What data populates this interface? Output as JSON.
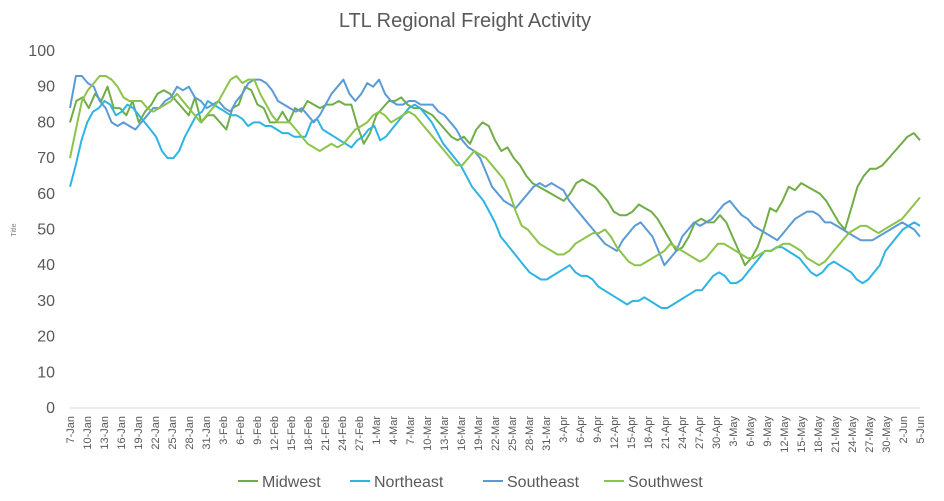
{
  "chart_data": {
    "type": "line",
    "title": "LTL Regional Freight Activity",
    "ylabel": "Title",
    "xlabel": "",
    "ylim": [
      0,
      100
    ],
    "y_ticks": [
      0,
      10,
      20,
      30,
      40,
      50,
      60,
      70,
      80,
      90,
      100
    ],
    "grid": false,
    "legend": "bottom",
    "x_tick_labels": [
      "7-Jan",
      "10-Jan",
      "13-Jan",
      "16-Jan",
      "19-Jan",
      "22-Jan",
      "25-Jan",
      "28-Jan",
      "31-Jan",
      "3-Feb",
      "6-Feb",
      "9-Feb",
      "12-Feb",
      "15-Feb",
      "18-Feb",
      "21-Feb",
      "24-Feb",
      "27-Feb",
      "1-Mar",
      "4-Mar",
      "7-Mar",
      "10-Mar",
      "13-Mar",
      "16-Mar",
      "19-Mar",
      "22-Mar",
      "25-Mar",
      "28-Mar",
      "31-Mar",
      "3-Apr",
      "6-Apr",
      "9-Apr",
      "12-Apr",
      "15-Apr",
      "18-Apr",
      "21-Apr",
      "24-Apr",
      "27-Apr",
      "30-Apr",
      "3-May",
      "6-May",
      "9-May",
      "12-May",
      "15-May",
      "18-May",
      "21-May",
      "24-May",
      "27-May",
      "30-May",
      "2-Jun",
      "5-Jun"
    ],
    "series": [
      {
        "name": "Midwest",
        "color": "#70AD47",
        "values": [
          80,
          86,
          87,
          84,
          88,
          86,
          90,
          84,
          84,
          82,
          86,
          80,
          83,
          85,
          88,
          89,
          88,
          86,
          84,
          82,
          87,
          80,
          82,
          82,
          80,
          78,
          84,
          85,
          90,
          89,
          85,
          84,
          80,
          80,
          83,
          80,
          84,
          83,
          86,
          85,
          84,
          85,
          85,
          86,
          85,
          85,
          79,
          74,
          77,
          82,
          84,
          86,
          86,
          87,
          85,
          84,
          84,
          83,
          82,
          80,
          78,
          76,
          75,
          76,
          74,
          78,
          80,
          79,
          75,
          72,
          73,
          70,
          68,
          65,
          63,
          62,
          61,
          60,
          59,
          58,
          60,
          63,
          64,
          63,
          62,
          60,
          58,
          55,
          54,
          54,
          55,
          57,
          56,
          55,
          53,
          50,
          47,
          44,
          45,
          48,
          52,
          53,
          52,
          52,
          54,
          52,
          48,
          44,
          40,
          42,
          45,
          50,
          56,
          55,
          58,
          62,
          61,
          63,
          62,
          61,
          60,
          58,
          55,
          52,
          50,
          56,
          62,
          65,
          67,
          67,
          68,
          70,
          72,
          74,
          76,
          77,
          75
        ]
      },
      {
        "name": "Northeast",
        "color": "#2EB4E3",
        "values": [
          62,
          68,
          75,
          80,
          83,
          84,
          86,
          85,
          82,
          83,
          85,
          84,
          82,
          80,
          78,
          76,
          72,
          70,
          70,
          72,
          76,
          79,
          82,
          83,
          86,
          85,
          84,
          83,
          82,
          82,
          81,
          79,
          80,
          80,
          79,
          79,
          78,
          77,
          77,
          76,
          76,
          76,
          80,
          81,
          78,
          77,
          76,
          75,
          74,
          73,
          75,
          76,
          78,
          79,
          75,
          76,
          78,
          80,
          82,
          84,
          85,
          84,
          82,
          80,
          77,
          74,
          72,
          70,
          68,
          65,
          62,
          60,
          58,
          55,
          52,
          48,
          46,
          44,
          42,
          40,
          38,
          37,
          36,
          36,
          37,
          38,
          39,
          40,
          38,
          37,
          37,
          36,
          34,
          33,
          32,
          31,
          30,
          29,
          30,
          30,
          31,
          30,
          29,
          28,
          28,
          29,
          30,
          31,
          32,
          33,
          33,
          35,
          37,
          38,
          37,
          35,
          35,
          36,
          38,
          40,
          42,
          44,
          44,
          45,
          45,
          44,
          43,
          42,
          40,
          38,
          37,
          38,
          40,
          41,
          40,
          39,
          38,
          36,
          35,
          36,
          38,
          40,
          44,
          46,
          48,
          50,
          51,
          52,
          51
        ]
      },
      {
        "name": "Southeast",
        "color": "#5B9BD5",
        "values": [
          84,
          93,
          93,
          91,
          90,
          86,
          84,
          80,
          79,
          80,
          79,
          78,
          80,
          82,
          84,
          84,
          86,
          87,
          90,
          89,
          90,
          87,
          86,
          84,
          85,
          86,
          84,
          83,
          86,
          88,
          91,
          92,
          92,
          91,
          89,
          86,
          85,
          84,
          83,
          84,
          82,
          80,
          82,
          85,
          88,
          90,
          92,
          88,
          86,
          88,
          91,
          90,
          92,
          88,
          86,
          85,
          85,
          86,
          86,
          85,
          85,
          85,
          83,
          82,
          80,
          78,
          75,
          73,
          72,
          70,
          66,
          62,
          60,
          58,
          57,
          56,
          58,
          60,
          62,
          63,
          62,
          63,
          62,
          61,
          58,
          56,
          54,
          52,
          50,
          48,
          46,
          45,
          44,
          47,
          49,
          51,
          52,
          50,
          48,
          44,
          40,
          42,
          44,
          48,
          50,
          52,
          51,
          52,
          53,
          55,
          57,
          58,
          56,
          54,
          53,
          51,
          50,
          49,
          48,
          47,
          49,
          51,
          53,
          54,
          55,
          55,
          54,
          52,
          52,
          51,
          50,
          49,
          48,
          47,
          47,
          47,
          48,
          49,
          50,
          51,
          52,
          51,
          50,
          48
        ]
      },
      {
        "name": "Southwest",
        "color": "#8CC34A",
        "values": [
          70,
          78,
          86,
          89,
          91,
          93,
          93,
          92,
          90,
          87,
          86,
          86,
          86,
          84,
          83,
          84,
          85,
          86,
          88,
          86,
          84,
          82,
          80,
          82,
          84,
          86,
          89,
          92,
          93,
          91,
          92,
          92,
          88,
          85,
          82,
          80,
          80,
          80,
          78,
          76,
          74,
          73,
          72,
          73,
          74,
          73,
          74,
          76,
          78,
          79,
          80,
          82,
          83,
          82,
          80,
          81,
          82,
          83,
          82,
          80,
          78,
          76,
          74,
          72,
          70,
          68,
          68,
          70,
          72,
          71,
          70,
          68,
          66,
          64,
          60,
          55,
          51,
          50,
          48,
          46,
          45,
          44,
          43,
          43,
          44,
          46,
          47,
          48,
          49,
          49,
          50,
          48,
          45,
          43,
          41,
          40,
          40,
          41,
          42,
          43,
          44,
          46,
          45,
          44,
          43,
          42,
          41,
          42,
          44,
          46,
          46,
          45,
          44,
          43,
          42,
          42,
          43,
          44,
          44,
          45,
          46,
          46,
          45,
          44,
          42,
          41,
          40,
          41,
          43,
          45,
          47,
          49,
          50,
          51,
          51,
          50,
          49,
          50,
          51,
          52,
          53,
          55,
          57,
          59
        ]
      }
    ]
  }
}
